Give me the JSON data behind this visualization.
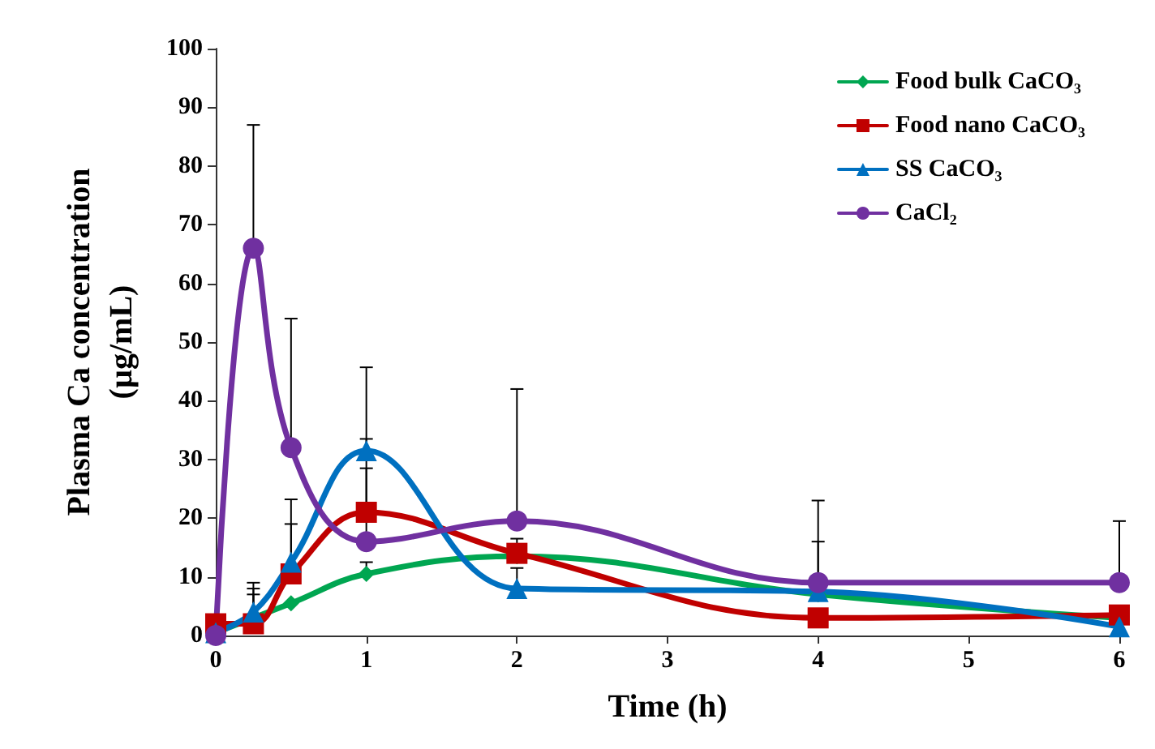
{
  "chart_data": {
    "type": "line",
    "xlabel": "Time (h)",
    "ylabel": "Plasma Ca concentration\n(µg/mL)",
    "x": [
      0,
      0.25,
      0.5,
      1,
      2,
      4,
      6
    ],
    "series": [
      {
        "name": "Food bulk CaCO₃",
        "color": "#00a651",
        "marker": "diamond",
        "values": [
          0.5,
          3,
          5.5,
          10.5,
          13.5,
          7,
          3
        ],
        "errors": [
          null,
          [
            3,
            7
          ],
          null,
          [
            10.5,
            12.5
          ],
          [
            13.5,
            16.5
          ],
          null,
          null
        ]
      },
      {
        "name": "Food nano CaCO₃",
        "color": "#c00000",
        "marker": "square",
        "values": [
          2,
          2,
          10.5,
          21,
          14,
          3,
          3.5
        ],
        "errors": [
          null,
          [
            2,
            9
          ],
          [
            10.5,
            19
          ],
          [
            21,
            28.5
          ],
          null,
          null,
          null
        ]
      },
      {
        "name": "SS CaCO₃",
        "color": "#0070c0",
        "marker": "triangle",
        "values": [
          0.5,
          4,
          12.5,
          31.5,
          8,
          7.5,
          1.5
        ],
        "errors": [
          null,
          [
            4,
            8
          ],
          [
            12.5,
            23.2
          ],
          [
            31.5,
            33.5
          ],
          [
            8,
            11.5
          ],
          [
            7.5,
            16
          ],
          null
        ]
      },
      {
        "name": "CaCl₂",
        "color": "#7030a0",
        "marker": "circle",
        "values": [
          0,
          66,
          32,
          16,
          19.5,
          9,
          9
        ],
        "errors": [
          null,
          [
            66,
            87
          ],
          [
            32,
            54
          ],
          [
            16,
            45.7
          ],
          [
            19.5,
            42
          ],
          [
            9,
            23
          ],
          [
            9,
            19.5
          ]
        ]
      }
    ],
    "xlim": [
      0,
      6
    ],
    "xticks": [
      0,
      1,
      2,
      3,
      4,
      5,
      6
    ],
    "ylim": [
      0,
      100
    ],
    "yticks": [
      0,
      10,
      20,
      30,
      40,
      50,
      60,
      70,
      80,
      90,
      100
    ],
    "grid": false,
    "legend": "top right"
  }
}
